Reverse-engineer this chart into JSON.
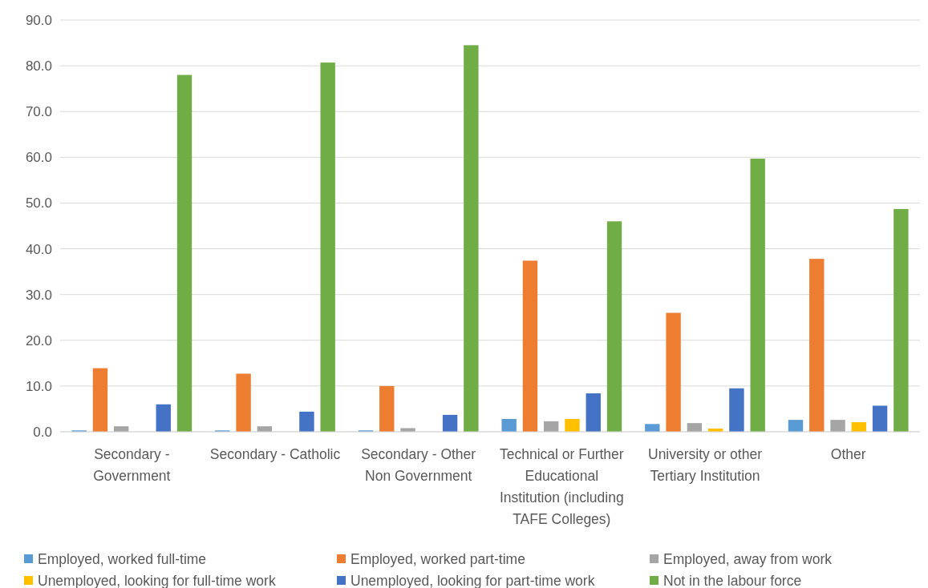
{
  "chart_data": {
    "type": "bar",
    "categories": [
      "Secondary - Government",
      "Secondary - Catholic",
      "Secondary - Other Non Government",
      "Technical or Further Educational Institution (including TAFE Colleges)",
      "University or other Tertiary Institution",
      "Other"
    ],
    "series": [
      {
        "name": "Employed, worked full-time",
        "color": "#5b9bd5",
        "values": [
          0.3,
          0.3,
          0.3,
          2.8,
          1.7,
          2.6
        ]
      },
      {
        "name": "Employed, worked part-time",
        "color": "#ed7d31",
        "values": [
          13.9,
          12.7,
          10.0,
          37.4,
          26.0,
          37.8
        ]
      },
      {
        "name": "Employed, away from work",
        "color": "#a5a5a5",
        "values": [
          1.2,
          1.2,
          0.8,
          2.3,
          1.9,
          2.6
        ]
      },
      {
        "name": "Unemployed, looking for full-time work",
        "color": "#ffc000",
        "values": [
          0,
          0,
          0,
          2.8,
          0.7,
          2.1
        ]
      },
      {
        "name": "Unemployed, looking for part-time work",
        "color": "#4472c4",
        "values": [
          6.0,
          4.4,
          3.7,
          8.4,
          9.5,
          5.7
        ]
      },
      {
        "name": "Not in the labour force",
        "color": "#70ad47",
        "values": [
          78.0,
          80.7,
          84.5,
          46.0,
          59.7,
          48.7
        ]
      }
    ],
    "ylim": [
      0,
      90
    ],
    "yticks": [
      {
        "value": 0,
        "label": "0.0"
      },
      {
        "value": 10,
        "label": "10.0"
      },
      {
        "value": 20,
        "label": "20.0"
      },
      {
        "value": 30,
        "label": "30.0"
      },
      {
        "value": 40,
        "label": "40.0"
      },
      {
        "value": 50,
        "label": "50.0"
      },
      {
        "value": 60,
        "label": "60.0"
      },
      {
        "value": 70,
        "label": "70.0"
      },
      {
        "value": 80,
        "label": "80.0"
      },
      {
        "value": 90,
        "label": "90.0"
      }
    ],
    "grid": "y",
    "legend": "bottom"
  }
}
